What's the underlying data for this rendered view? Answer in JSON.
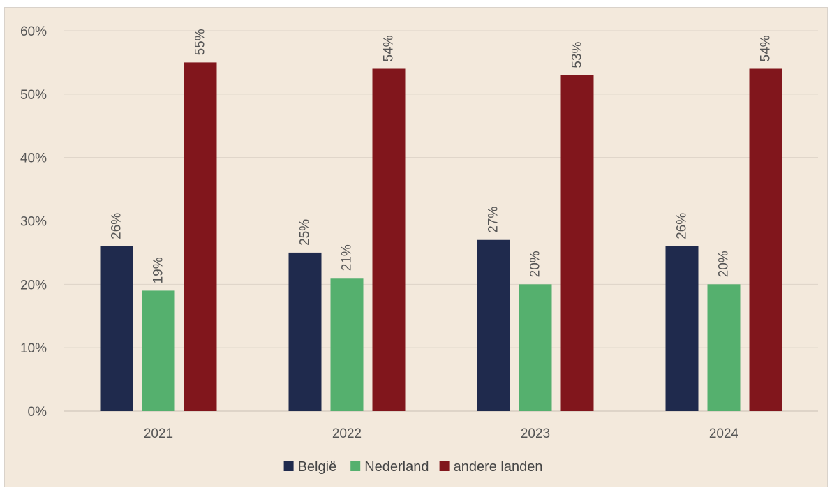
{
  "chart_data": {
    "type": "bar",
    "categories": [
      "2021",
      "2022",
      "2023",
      "2024"
    ],
    "series": [
      {
        "name": "België",
        "color": "#1f2a4d",
        "values": [
          26,
          25,
          27,
          26
        ]
      },
      {
        "name": "Nederland",
        "color": "#55b06e",
        "values": [
          19,
          21,
          20,
          20
        ]
      },
      {
        "name": "andere landen",
        "color": "#81161c",
        "values": [
          55,
          54,
          53,
          54
        ]
      }
    ],
    "value_format": "percent",
    "ylim": [
      0,
      60
    ],
    "yticks": [
      0,
      10,
      20,
      30,
      40,
      50,
      60
    ],
    "ytick_labels": [
      "0%",
      "10%",
      "20%",
      "30%",
      "40%",
      "50%",
      "60%"
    ],
    "data_labels": true,
    "grid": true,
    "legend_position": "bottom",
    "background": "#f3e9dc"
  }
}
